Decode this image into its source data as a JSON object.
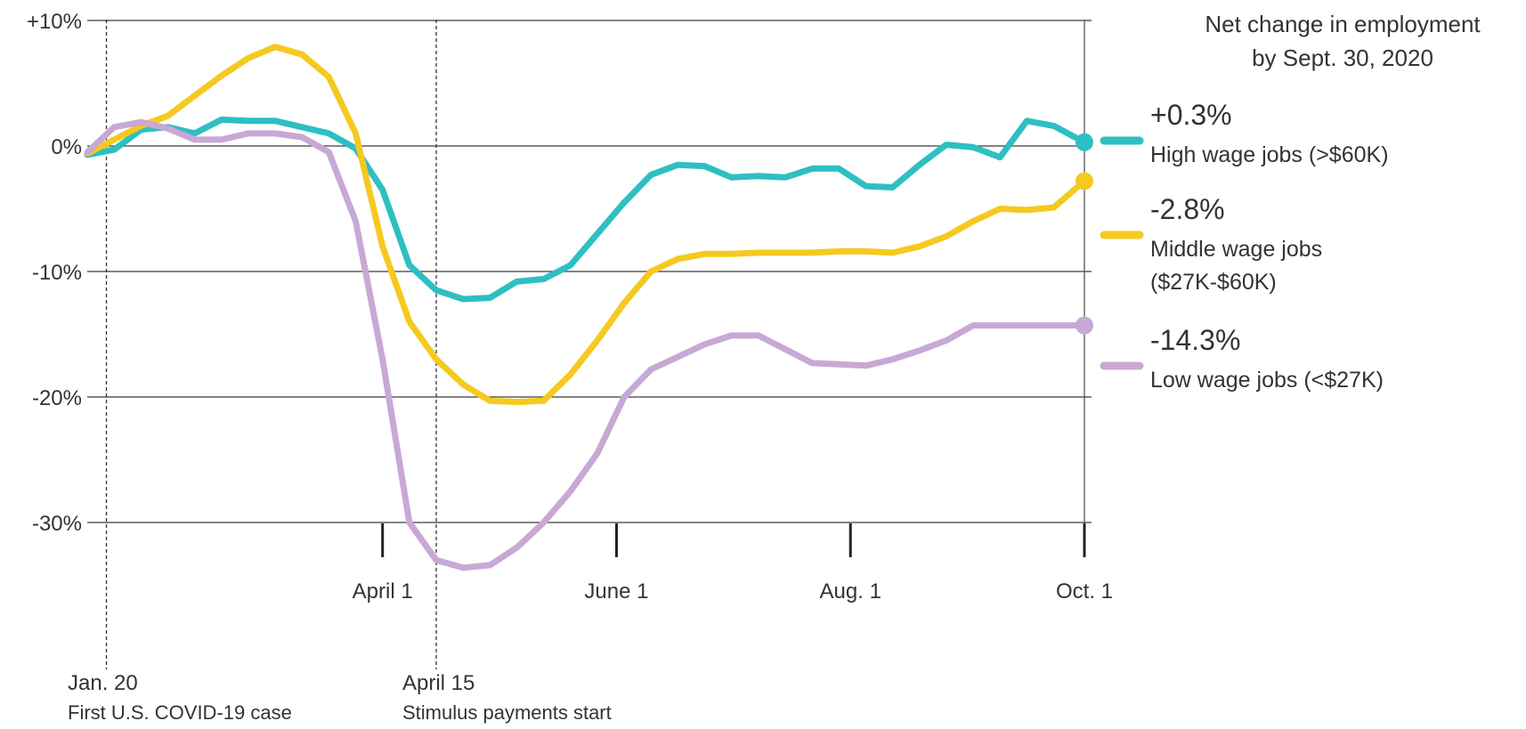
{
  "chart_data": {
    "type": "line",
    "title": "Net change in employment by Sept. 30, 2020",
    "title_lines": [
      "Net change in employment",
      "by Sept. 30, 2020"
    ],
    "ylim": [
      -36,
      10
    ],
    "yticks": [
      10,
      0,
      -10,
      -20,
      -30
    ],
    "ytick_labels": [
      "+10%",
      "0%",
      "-10%",
      "-20%",
      "-30%"
    ],
    "grid": "horizontal",
    "x_range": [
      "2020-01-15",
      "2020-10-01"
    ],
    "xticks": [
      {
        "date": "2020-04-01",
        "label": "April 1"
      },
      {
        "date": "2020-06-01",
        "label": "June 1"
      },
      {
        "date": "2020-08-01",
        "label": "Aug. 1"
      },
      {
        "date": "2020-10-01",
        "label": "Oct. 1"
      }
    ],
    "events": [
      {
        "date": "2020-01-20",
        "label": "Jan. 20",
        "description": "First U.S. COVID-19 case"
      },
      {
        "date": "2020-04-15",
        "label": "April 15",
        "description": "Stimulus payments start"
      }
    ],
    "legend_position": "right",
    "series": [
      {
        "name": "High wage jobs (>$60K)",
        "legend_lines": [
          "High wage jobs (>$60K)"
        ],
        "final_label": "+0.3%",
        "color": "#2ebfc2",
        "points": [
          [
            "2020-01-15",
            -0.7
          ],
          [
            "2020-01-22",
            -0.3
          ],
          [
            "2020-01-29",
            1.3
          ],
          [
            "2020-02-05",
            1.5
          ],
          [
            "2020-02-12",
            1.0
          ],
          [
            "2020-02-19",
            2.1
          ],
          [
            "2020-02-26",
            2.0
          ],
          [
            "2020-03-04",
            2.0
          ],
          [
            "2020-03-11",
            1.5
          ],
          [
            "2020-03-18",
            1.0
          ],
          [
            "2020-03-25",
            -0.2
          ],
          [
            "2020-04-01",
            -3.5
          ],
          [
            "2020-04-08",
            -9.5
          ],
          [
            "2020-04-15",
            -11.5
          ],
          [
            "2020-04-22",
            -12.2
          ],
          [
            "2020-04-29",
            -12.1
          ],
          [
            "2020-05-06",
            -10.8
          ],
          [
            "2020-05-13",
            -10.6
          ],
          [
            "2020-05-20",
            -9.5
          ],
          [
            "2020-05-27",
            -7.0
          ],
          [
            "2020-06-03",
            -4.5
          ],
          [
            "2020-06-10",
            -2.3
          ],
          [
            "2020-06-17",
            -1.5
          ],
          [
            "2020-06-24",
            -1.6
          ],
          [
            "2020-07-01",
            -2.5
          ],
          [
            "2020-07-08",
            -2.4
          ],
          [
            "2020-07-15",
            -2.5
          ],
          [
            "2020-07-22",
            -1.8
          ],
          [
            "2020-07-29",
            -1.8
          ],
          [
            "2020-08-05",
            -3.2
          ],
          [
            "2020-08-12",
            -3.3
          ],
          [
            "2020-08-19",
            -1.5
          ],
          [
            "2020-08-26",
            0.1
          ],
          [
            "2020-09-02",
            -0.1
          ],
          [
            "2020-09-09",
            -0.9
          ],
          [
            "2020-09-16",
            2.0
          ],
          [
            "2020-09-23",
            1.6
          ],
          [
            "2020-10-01",
            0.3
          ]
        ]
      },
      {
        "name": "Middle wage jobs ($27K-$60K)",
        "legend_lines": [
          "Middle wage jobs",
          "($27K-$60K)"
        ],
        "final_label": "-2.8%",
        "color": "#f5c920",
        "points": [
          [
            "2020-01-15",
            -0.6
          ],
          [
            "2020-01-22",
            0.5
          ],
          [
            "2020-01-29",
            1.6
          ],
          [
            "2020-02-05",
            2.4
          ],
          [
            "2020-02-12",
            4.0
          ],
          [
            "2020-02-19",
            5.6
          ],
          [
            "2020-02-26",
            7.0
          ],
          [
            "2020-03-04",
            7.9
          ],
          [
            "2020-03-11",
            7.3
          ],
          [
            "2020-03-18",
            5.5
          ],
          [
            "2020-03-25",
            1.0
          ],
          [
            "2020-04-01",
            -8.0
          ],
          [
            "2020-04-08",
            -14.0
          ],
          [
            "2020-04-15",
            -17.0
          ],
          [
            "2020-04-22",
            -19.0
          ],
          [
            "2020-04-29",
            -20.3
          ],
          [
            "2020-05-06",
            -20.4
          ],
          [
            "2020-05-13",
            -20.3
          ],
          [
            "2020-05-20",
            -18.2
          ],
          [
            "2020-05-27",
            -15.5
          ],
          [
            "2020-06-03",
            -12.5
          ],
          [
            "2020-06-10",
            -10.0
          ],
          [
            "2020-06-17",
            -9.0
          ],
          [
            "2020-06-24",
            -8.6
          ],
          [
            "2020-07-01",
            -8.6
          ],
          [
            "2020-07-08",
            -8.5
          ],
          [
            "2020-07-15",
            -8.5
          ],
          [
            "2020-07-22",
            -8.5
          ],
          [
            "2020-07-29",
            -8.4
          ],
          [
            "2020-08-05",
            -8.4
          ],
          [
            "2020-08-12",
            -8.5
          ],
          [
            "2020-08-19",
            -8.0
          ],
          [
            "2020-08-26",
            -7.2
          ],
          [
            "2020-09-02",
            -6.0
          ],
          [
            "2020-09-09",
            -5.0
          ],
          [
            "2020-09-16",
            -5.1
          ],
          [
            "2020-09-23",
            -4.9
          ],
          [
            "2020-10-01",
            -2.8
          ]
        ]
      },
      {
        "name": "Low wage jobs (<$27K)",
        "legend_lines": [
          "Low wage jobs (<$27K)"
        ],
        "final_label": "-14.3%",
        "color": "#c8a8d4",
        "points": [
          [
            "2020-01-15",
            -0.5
          ],
          [
            "2020-01-22",
            1.5
          ],
          [
            "2020-01-29",
            1.9
          ],
          [
            "2020-02-05",
            1.4
          ],
          [
            "2020-02-12",
            0.5
          ],
          [
            "2020-02-19",
            0.5
          ],
          [
            "2020-02-26",
            1.0
          ],
          [
            "2020-03-04",
            1.0
          ],
          [
            "2020-03-11",
            0.7
          ],
          [
            "2020-03-18",
            -0.5
          ],
          [
            "2020-03-25",
            -6.0
          ],
          [
            "2020-04-01",
            -17.0
          ],
          [
            "2020-04-08",
            -30.0
          ],
          [
            "2020-04-15",
            -33.0
          ],
          [
            "2020-04-22",
            -33.6
          ],
          [
            "2020-04-29",
            -33.4
          ],
          [
            "2020-05-06",
            -32.0
          ],
          [
            "2020-05-13",
            -30.0
          ],
          [
            "2020-05-20",
            -27.5
          ],
          [
            "2020-05-27",
            -24.5
          ],
          [
            "2020-06-03",
            -20.0
          ],
          [
            "2020-06-10",
            -17.8
          ],
          [
            "2020-06-17",
            -16.8
          ],
          [
            "2020-06-24",
            -15.8
          ],
          [
            "2020-07-01",
            -15.1
          ],
          [
            "2020-07-08",
            -15.1
          ],
          [
            "2020-07-15",
            -16.2
          ],
          [
            "2020-07-22",
            -17.3
          ],
          [
            "2020-07-29",
            -17.4
          ],
          [
            "2020-08-05",
            -17.5
          ],
          [
            "2020-08-12",
            -17.0
          ],
          [
            "2020-08-19",
            -16.3
          ],
          [
            "2020-08-26",
            -15.5
          ],
          [
            "2020-09-02",
            -14.3
          ],
          [
            "2020-09-09",
            -14.3
          ],
          [
            "2020-10-01",
            -14.3
          ]
        ]
      }
    ]
  }
}
